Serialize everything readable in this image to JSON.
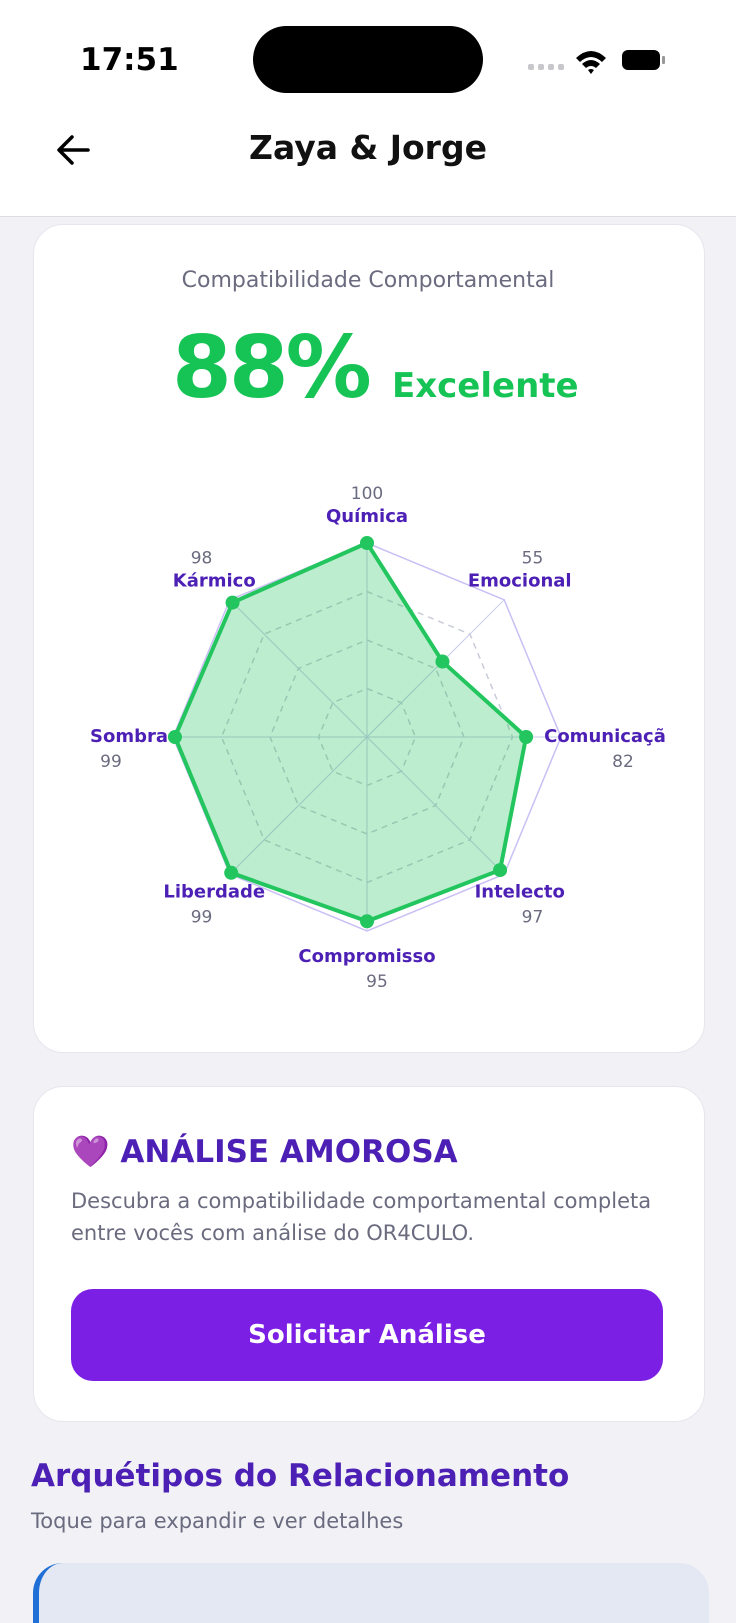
{
  "status_bar": {
    "time": "17:51"
  },
  "header": {
    "title": "Zaya & Jorge"
  },
  "score_card": {
    "title": "Compatibilidade Comportamental",
    "score": "88%",
    "rating": "Excelente"
  },
  "chart_data": {
    "type": "radar",
    "categories": [
      "Química",
      "Emocional",
      "Comunicaçã",
      "Intelecto",
      "Compromisso",
      "Liberdade",
      "Sombra",
      "Kármico"
    ],
    "values": [
      100,
      55,
      82,
      97,
      95,
      99,
      99,
      98
    ],
    "color": "#22c55e",
    "rlim": [
      0,
      100
    ],
    "rticks": [
      25,
      50,
      75,
      100
    ]
  },
  "love_card": {
    "title": "💜 ANÁLISE AMOROSA",
    "description": "Descubra a compatibilidade comportamental completa entre vocês com análise do OR4CULO.",
    "button": "Solicitar Análise"
  },
  "archetypes": {
    "title": "Arquétipos do Relacionamento",
    "subtitle": "Toque para expandir e ver detalhes"
  }
}
